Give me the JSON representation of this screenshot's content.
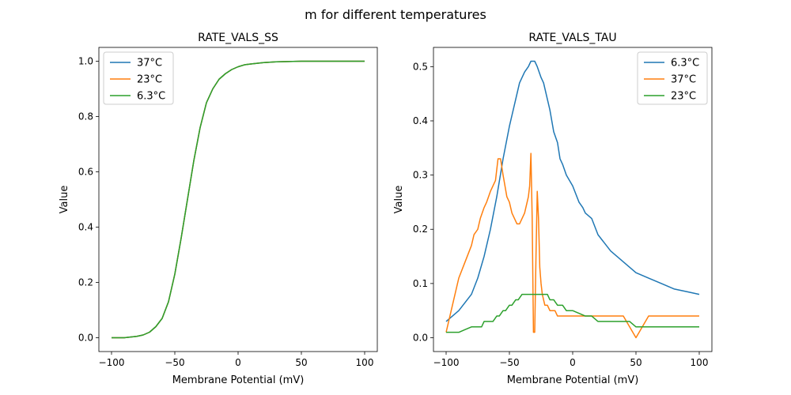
{
  "figure": {
    "suptitle": "m for different temperatures"
  },
  "chart_data": [
    {
      "type": "line",
      "title": "RATE_VALS_SS",
      "xlabel": "Membrane Potential (mV)",
      "ylabel": "Value",
      "xlim": [
        -110,
        110
      ],
      "ylim": [
        -0.05,
        1.05
      ],
      "xticks": [
        -100,
        -50,
        0,
        50,
        100
      ],
      "yticks": [
        0.0,
        0.2,
        0.4,
        0.6,
        0.8,
        1.0
      ],
      "xtick_labels": [
        "−100",
        "−50",
        "0",
        "50",
        "100"
      ],
      "ytick_labels": [
        "0.0",
        "0.2",
        "0.4",
        "0.6",
        "0.8",
        "1.0"
      ],
      "grid": false,
      "legend_position": "top-left",
      "series": [
        {
          "name": "37°C",
          "color": "#1f77b4",
          "x": [
            -100,
            -90,
            -80,
            -75,
            -70,
            -65,
            -60,
            -55,
            -50,
            -45,
            -40,
            -35,
            -30,
            -25,
            -20,
            -15,
            -10,
            -5,
            0,
            5,
            10,
            20,
            30,
            40,
            50,
            60,
            80,
            100
          ],
          "y": [
            0.0,
            0.0,
            0.005,
            0.01,
            0.02,
            0.04,
            0.07,
            0.13,
            0.23,
            0.36,
            0.5,
            0.64,
            0.76,
            0.85,
            0.9,
            0.935,
            0.955,
            0.97,
            0.98,
            0.987,
            0.99,
            0.995,
            0.998,
            0.999,
            1.0,
            1.0,
            1.0,
            1.0
          ]
        },
        {
          "name": "23°C",
          "color": "#ff7f0e",
          "x": [
            -100,
            -90,
            -80,
            -75,
            -70,
            -65,
            -60,
            -55,
            -50,
            -45,
            -40,
            -35,
            -30,
            -25,
            -20,
            -15,
            -10,
            -5,
            0,
            5,
            10,
            20,
            30,
            40,
            50,
            60,
            80,
            100
          ],
          "y": [
            0.0,
            0.0,
            0.005,
            0.01,
            0.02,
            0.04,
            0.07,
            0.13,
            0.23,
            0.36,
            0.5,
            0.64,
            0.76,
            0.85,
            0.9,
            0.935,
            0.955,
            0.97,
            0.98,
            0.987,
            0.99,
            0.995,
            0.998,
            0.999,
            1.0,
            1.0,
            1.0,
            1.0
          ]
        },
        {
          "name": "6.3°C",
          "color": "#2ca02c",
          "x": [
            -100,
            -90,
            -80,
            -75,
            -70,
            -65,
            -60,
            -55,
            -50,
            -45,
            -40,
            -35,
            -30,
            -25,
            -20,
            -15,
            -10,
            -5,
            0,
            5,
            10,
            20,
            30,
            40,
            50,
            60,
            80,
            100
          ],
          "y": [
            0.0,
            0.0,
            0.005,
            0.01,
            0.02,
            0.04,
            0.07,
            0.13,
            0.23,
            0.36,
            0.5,
            0.64,
            0.76,
            0.85,
            0.9,
            0.935,
            0.955,
            0.97,
            0.98,
            0.987,
            0.99,
            0.995,
            0.998,
            0.999,
            1.0,
            1.0,
            1.0,
            1.0
          ]
        }
      ]
    },
    {
      "type": "line",
      "title": "RATE_VALS_TAU",
      "xlabel": "Membrane Potential (mV)",
      "ylabel": "Value",
      "xlim": [
        -110,
        110
      ],
      "ylim": [
        -0.0255,
        0.5355
      ],
      "xticks": [
        -100,
        -50,
        0,
        50,
        100
      ],
      "yticks": [
        0.0,
        0.1,
        0.2,
        0.3,
        0.4,
        0.5
      ],
      "xtick_labels": [
        "−100",
        "−50",
        "0",
        "50",
        "100"
      ],
      "ytick_labels": [
        "0.0",
        "0.1",
        "0.2",
        "0.3",
        "0.4",
        "0.5"
      ],
      "grid": false,
      "legend_position": "top-right",
      "series": [
        {
          "name": "6.3°C",
          "color": "#1f77b4",
          "x": [
            -100,
            -90,
            -80,
            -75,
            -70,
            -65,
            -60,
            -55,
            -50,
            -48,
            -45,
            -42,
            -40,
            -38,
            -35,
            -33,
            -30,
            -28,
            -25,
            -23,
            -20,
            -18,
            -15,
            -12,
            -10,
            -8,
            -5,
            0,
            5,
            8,
            10,
            15,
            20,
            30,
            40,
            50,
            60,
            70,
            80,
            90,
            100
          ],
          "y": [
            0.03,
            0.05,
            0.08,
            0.11,
            0.15,
            0.2,
            0.26,
            0.33,
            0.39,
            0.41,
            0.44,
            0.47,
            0.48,
            0.49,
            0.5,
            0.51,
            0.51,
            0.5,
            0.48,
            0.47,
            0.44,
            0.42,
            0.38,
            0.36,
            0.33,
            0.32,
            0.3,
            0.28,
            0.25,
            0.24,
            0.23,
            0.22,
            0.19,
            0.16,
            0.14,
            0.12,
            0.11,
            0.1,
            0.09,
            0.085,
            0.08
          ]
        },
        {
          "name": "37°C",
          "color": "#ff7f0e",
          "x": [
            -100,
            -95,
            -90,
            -85,
            -80,
            -78,
            -75,
            -73,
            -70,
            -68,
            -65,
            -63,
            -61,
            -59,
            -57,
            -55,
            -52,
            -50,
            -48,
            -46,
            -44,
            -42,
            -40,
            -38,
            -36,
            -35,
            -34,
            -33,
            -32,
            -31,
            -30,
            -29,
            -28,
            -27,
            -26,
            -25,
            -24,
            -22,
            -20,
            -18,
            -16,
            -14,
            -12,
            -10,
            0,
            10,
            20,
            30,
            40,
            45,
            50,
            55,
            60,
            70,
            80,
            90,
            100
          ],
          "y": [
            0.01,
            0.06,
            0.11,
            0.14,
            0.17,
            0.19,
            0.2,
            0.22,
            0.24,
            0.25,
            0.27,
            0.28,
            0.29,
            0.33,
            0.33,
            0.3,
            0.26,
            0.25,
            0.23,
            0.22,
            0.21,
            0.21,
            0.22,
            0.23,
            0.25,
            0.26,
            0.28,
            0.34,
            0.22,
            0.01,
            0.01,
            0.15,
            0.27,
            0.22,
            0.13,
            0.1,
            0.08,
            0.06,
            0.06,
            0.05,
            0.05,
            0.05,
            0.04,
            0.04,
            0.04,
            0.04,
            0.04,
            0.04,
            0.04,
            0.02,
            0.0,
            0.02,
            0.04,
            0.04,
            0.04,
            0.04,
            0.04
          ]
        },
        {
          "name": "23°C",
          "color": "#2ca02c",
          "x": [
            -100,
            -90,
            -85,
            -80,
            -75,
            -72,
            -70,
            -68,
            -65,
            -63,
            -60,
            -58,
            -55,
            -53,
            -50,
            -48,
            -45,
            -43,
            -40,
            -38,
            -35,
            -30,
            -25,
            -20,
            -18,
            -15,
            -12,
            -10,
            -8,
            -5,
            0,
            10,
            15,
            20,
            30,
            40,
            45,
            50,
            60,
            70,
            80,
            90,
            100
          ],
          "y": [
            0.01,
            0.01,
            0.015,
            0.02,
            0.02,
            0.02,
            0.03,
            0.03,
            0.03,
            0.03,
            0.04,
            0.04,
            0.05,
            0.05,
            0.06,
            0.06,
            0.07,
            0.07,
            0.08,
            0.08,
            0.08,
            0.08,
            0.08,
            0.08,
            0.07,
            0.07,
            0.06,
            0.06,
            0.06,
            0.05,
            0.05,
            0.04,
            0.04,
            0.03,
            0.03,
            0.03,
            0.03,
            0.02,
            0.02,
            0.02,
            0.02,
            0.02,
            0.02
          ]
        }
      ]
    }
  ]
}
